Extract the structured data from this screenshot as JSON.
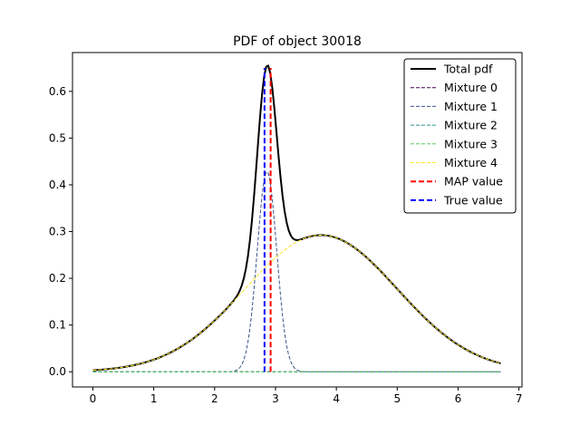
{
  "chart_data": {
    "type": "line",
    "title": "PDF of object 30018",
    "xlabel": "",
    "ylabel": "",
    "xlim": [
      -0.335,
      7.05
    ],
    "ylim": [
      -0.0325,
      0.683
    ],
    "x_ticks": [
      0,
      1,
      2,
      3,
      4,
      5,
      6,
      7
    ],
    "y_ticks": [
      0.0,
      0.1,
      0.2,
      0.3,
      0.4,
      0.5,
      0.6
    ],
    "x_tick_labels": [
      "0",
      "1",
      "2",
      "3",
      "4",
      "5",
      "6",
      "7"
    ],
    "y_tick_labels": [
      "0.0",
      "0.1",
      "0.2",
      "0.3",
      "0.4",
      "0.5",
      "0.6"
    ],
    "grid": false,
    "legend_position": "top-right",
    "x_range": [
      0,
      6.7
    ],
    "series": [
      {
        "name": "Total pdf",
        "style": "solid",
        "color": "#000000",
        "kind": "curve"
      },
      {
        "name": "Mixture 0",
        "style": "dashed",
        "color": "#440154",
        "kind": "gaussian",
        "mean": 3.0,
        "sd": 1.0,
        "weight": 0.0
      },
      {
        "name": "Mixture 1",
        "style": "dashed",
        "color": "#3b528b",
        "kind": "gaussian",
        "mean": 2.86,
        "sd": 0.16,
        "weight": 0.172
      },
      {
        "name": "Mixture 2",
        "style": "dashed",
        "color": "#21918c",
        "kind": "gaussian",
        "mean": 3.0,
        "sd": 1.5,
        "weight": 0.0
      },
      {
        "name": "Mixture 3",
        "style": "dashed",
        "color": "#5ec962",
        "kind": "gaussian",
        "mean": 3.0,
        "sd": 1.5,
        "weight": 0.0
      },
      {
        "name": "Mixture 4",
        "style": "dashed",
        "color": "#fde725",
        "kind": "gaussian",
        "mean": 3.75,
        "sd": 1.25,
        "weight": 0.916
      },
      {
        "name": "MAP value",
        "style": "dashed",
        "color": "#ff0000",
        "kind": "vline",
        "x": 2.92,
        "y_top": 0.65
      },
      {
        "name": "True value",
        "style": "dashed",
        "color": "#0000ff",
        "kind": "vline",
        "x": 2.82,
        "y_top": 0.65
      }
    ]
  }
}
